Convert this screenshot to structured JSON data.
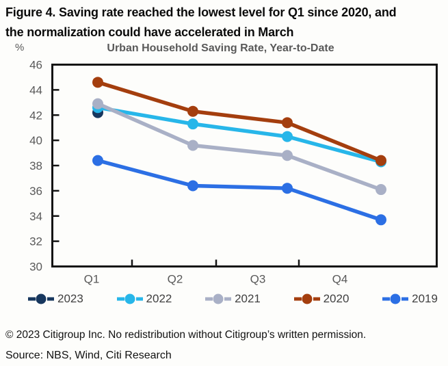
{
  "figure_title_line1": "Figure 4. Saving rate reached the lowest level for Q1 since 2020, and",
  "figure_title_line2": "the normalization could have accelerated in March",
  "chart_data": {
    "type": "line",
    "title": "Urban Household Saving Rate, Year-to-Date",
    "unit_label": "%",
    "categories": [
      "Q1",
      "Q2",
      "Q3",
      "Q4"
    ],
    "series": [
      {
        "name": "2023",
        "color": "#17375e",
        "values": [
          42.2,
          null,
          null,
          null
        ]
      },
      {
        "name": "2022",
        "color": "#27b6e9",
        "values": [
          42.6,
          41.3,
          40.3,
          38.3
        ]
      },
      {
        "name": "2021",
        "color": "#a9b0c6",
        "values": [
          42.9,
          39.6,
          38.8,
          36.1
        ]
      },
      {
        "name": "2020",
        "color": "#a43e0e",
        "values": [
          44.6,
          42.3,
          41.4,
          38.4
        ]
      },
      {
        "name": "2019",
        "color": "#2c6fe4",
        "values": [
          38.4,
          36.4,
          36.2,
          33.7
        ]
      }
    ],
    "ylim": [
      30,
      46
    ],
    "yticks": [
      46,
      44,
      42,
      40,
      38,
      36,
      34,
      32,
      30
    ],
    "xlabel": "",
    "ylabel": "",
    "grid": false,
    "legend_position": "bottom",
    "axis_text_color": "#595959",
    "frame_color": "#141414"
  },
  "footer": {
    "copyright": "© 2023 Citigroup Inc. No redistribution without Citigroup’s written permission.",
    "source": "Source: NBS, Wind, Citi Research"
  }
}
